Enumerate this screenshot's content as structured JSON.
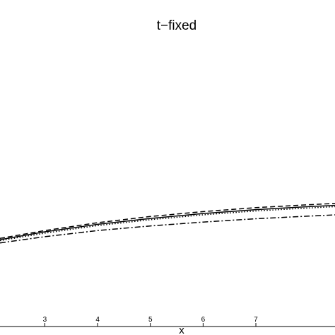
{
  "chart_data": {
    "type": "line",
    "title": "t−fixed",
    "xlabel": "x",
    "ylabel": "",
    "xlim": [
      2.15,
      8.5
    ],
    "ylim": [
      0,
      1
    ],
    "grid": false,
    "legend": "none",
    "x_ticks": [
      {
        "value": 3,
        "label": "3"
      },
      {
        "value": 4,
        "label": "4"
      },
      {
        "value": 5,
        "label": "5"
      },
      {
        "value": 6,
        "label": "6"
      },
      {
        "value": 7,
        "label": "7"
      }
    ],
    "series": [
      {
        "style": "dashed",
        "color": "#000000",
        "x": [
          2.15,
          3,
          4,
          5,
          6,
          7,
          8,
          8.5
        ],
        "y": [
          0.27,
          0.294,
          0.318,
          0.337,
          0.352,
          0.364,
          0.373,
          0.377
        ]
      },
      {
        "style": "solid",
        "color": "#000000",
        "x": [
          2.15,
          3,
          4,
          5,
          6,
          7,
          8,
          8.5
        ],
        "y": [
          0.266,
          0.29,
          0.313,
          0.331,
          0.346,
          0.358,
          0.367,
          0.371
        ]
      },
      {
        "style": "dotted",
        "color": "#000000",
        "x": [
          2.15,
          3,
          4,
          5,
          6,
          7,
          8,
          8.5
        ],
        "y": [
          0.263,
          0.286,
          0.309,
          0.327,
          0.342,
          0.354,
          0.363,
          0.367
        ]
      },
      {
        "style": "dashdot",
        "color": "#000000",
        "x": [
          2.15,
          3,
          4,
          5,
          6,
          7,
          8,
          8.5
        ],
        "y": [
          0.256,
          0.275,
          0.294,
          0.308,
          0.32,
          0.33,
          0.338,
          0.342
        ]
      }
    ]
  }
}
